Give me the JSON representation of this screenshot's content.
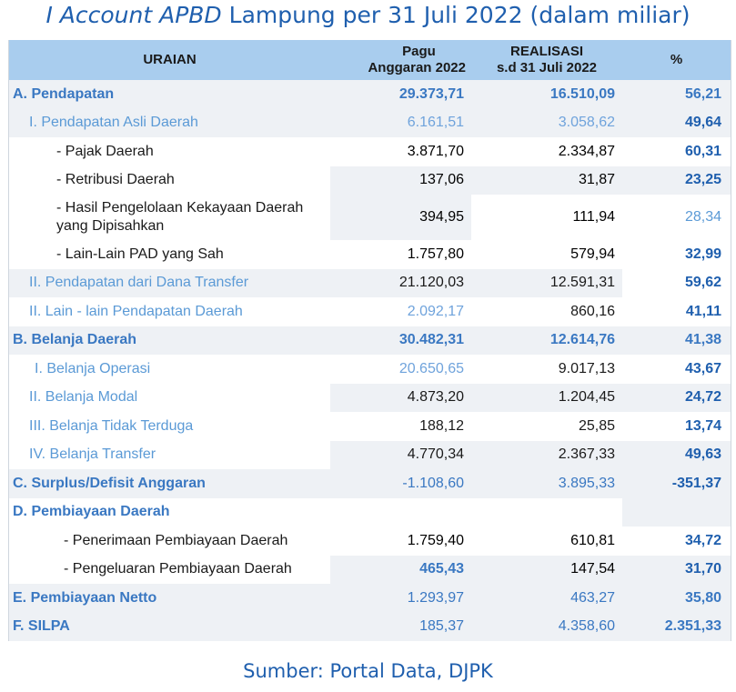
{
  "title": {
    "italic": "I Account APBD",
    "rest": " Lampung per 31 Juli 2022 (dalam miliar)"
  },
  "headers": {
    "uraian": "URAIAN",
    "pagu_line1": "Pagu",
    "pagu_line2": "Anggaran 2022",
    "real_line1": "REALISASI",
    "real_line2": "s.d 31 Juli 2022",
    "pct": "%"
  },
  "rows": [
    {
      "label": "A. Pendapatan",
      "pagu": "29.373,71",
      "realisasi": "16.510,09",
      "pct": "56,21"
    },
    {
      "label": "I. Pendapatan Asli Daerah",
      "pagu": "6.161,51",
      "realisasi": "3.058,62",
      "pct": "49,64"
    },
    {
      "label": "- Pajak Daerah",
      "pagu": "3.871,70",
      "realisasi": "2.334,87",
      "pct": "60,31"
    },
    {
      "label": "- Retribusi Daerah",
      "pagu": "137,06",
      "realisasi": "31,87",
      "pct": "23,25"
    },
    {
      "label": "- Hasil Pengelolaan Kekayaan Daerah yang Dipisahkan",
      "pagu": "394,95",
      "realisasi": "111,94",
      "pct": "28,34"
    },
    {
      "label": "- Lain-Lain PAD yang Sah",
      "pagu": "1.757,80",
      "realisasi": "579,94",
      "pct": "32,99"
    },
    {
      "label": "II. Pendapatan dari Dana Transfer",
      "pagu": "21.120,03",
      "realisasi": "12.591,31",
      "pct": "59,62"
    },
    {
      "label": "II. Lain - lain Pendapatan Daerah",
      "pagu": "2.092,17",
      "realisasi": "860,16",
      "pct": "41,11"
    },
    {
      "label": "B. Belanja Daerah",
      "pagu": "30.482,31",
      "realisasi": "12.614,76",
      "pct": "41,38"
    },
    {
      "label": "I. Belanja Operasi",
      "pagu": "20.650,65",
      "realisasi": "9.017,13",
      "pct": "43,67"
    },
    {
      "label": "II. Belanja Modal",
      "pagu": "4.873,20",
      "realisasi": "1.204,45",
      "pct": "24,72"
    },
    {
      "label": "III. Belanja Tidak Terduga",
      "pagu": "188,12",
      "realisasi": "25,85",
      "pct": "13,74"
    },
    {
      "label": "IV. Belanja Transfer",
      "pagu": "4.770,34",
      "realisasi": "2.367,33",
      "pct": "49,63"
    },
    {
      "label": "C. Surplus/Defisit Anggaran",
      "pagu": "-1.108,60",
      "realisasi": "3.895,33",
      "pct": "-351,37"
    },
    {
      "label": "D. Pembiayaan Daerah",
      "pagu": "",
      "realisasi": "",
      "pct": ""
    },
    {
      "label": "- Penerimaan Pembiayaan Daerah",
      "pagu": "1.759,40",
      "realisasi": "610,81",
      "pct": "34,72"
    },
    {
      "label": "- Pengeluaran Pembiayaan Daerah",
      "pagu": "465,43",
      "realisasi": "147,54",
      "pct": "31,70"
    },
    {
      "label": "E. Pembiayaan Netto",
      "pagu": "1.293,97",
      "realisasi": "463,27",
      "pct": "35,80"
    },
    {
      "label": "F. SILPA",
      "pagu": "185,37",
      "realisasi": "4.358,60",
      "pct": "2.351,33"
    }
  ],
  "source": "Sumber: Portal Data, DJPK",
  "colors": {
    "accent": "#1f5fae",
    "header_bg": "#a9cdee",
    "row_shade": "#eef1f5"
  }
}
